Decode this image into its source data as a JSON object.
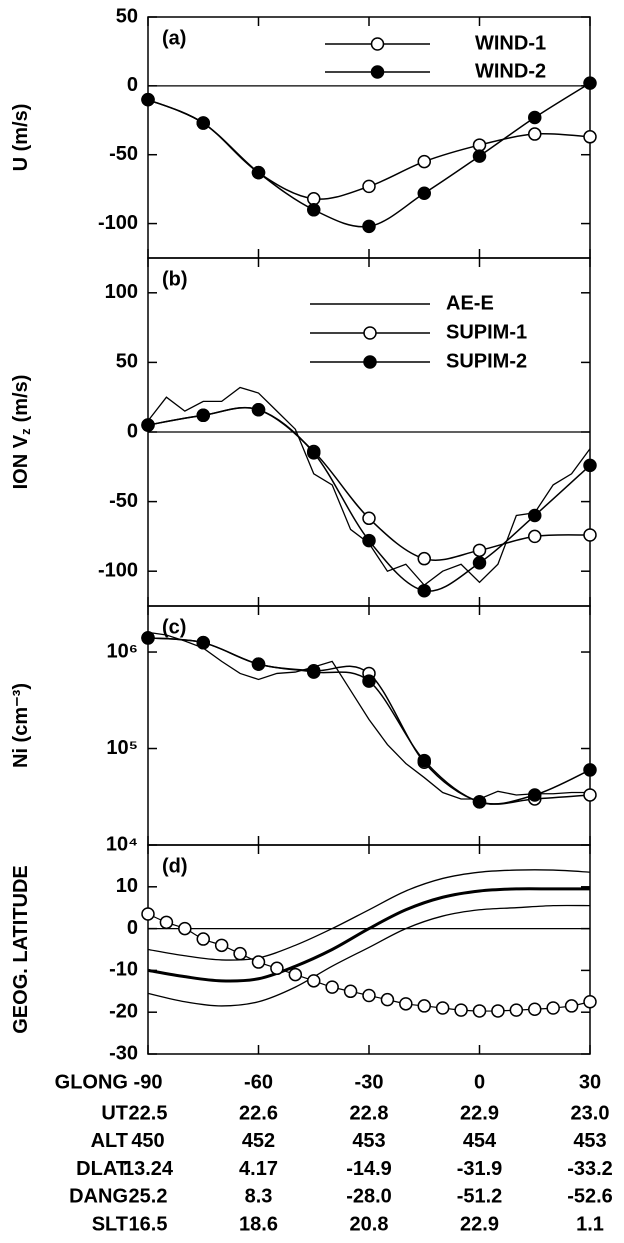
{
  "chart_data": [
    {
      "type": "line",
      "label": "(a)",
      "y_label": "U (m/s)",
      "xlim": [
        -90,
        30
      ],
      "xticks": [
        -90,
        -60,
        -30,
        0,
        30
      ],
      "ylim": [
        -125,
        50
      ],
      "yticks": [
        -100,
        -50,
        0,
        50
      ],
      "zero_line": true,
      "legend": true,
      "series": [
        {
          "name": "WIND-1",
          "color": "#000000",
          "marker": "open",
          "smooth": true,
          "width": 1.5,
          "x": [
            -90,
            -75,
            -60,
            -45,
            -30,
            -15,
            0,
            15,
            30
          ],
          "values": [
            -10,
            -27,
            -63,
            -82,
            -73,
            -55,
            -43,
            -35,
            -37
          ]
        },
        {
          "name": "WIND-2",
          "color": "#000000",
          "marker": "filled",
          "smooth": true,
          "width": 1.5,
          "x": [
            -90,
            -75,
            -60,
            -45,
            -30,
            -15,
            0,
            15,
            30
          ],
          "values": [
            -10,
            -27,
            -63,
            -90,
            -102,
            -78,
            -51,
            -23,
            2
          ]
        }
      ]
    },
    {
      "type": "line",
      "label": "(b)",
      "y_label": "ION V",
      "y_label_sub": "z",
      "y_label_unit": "(m/s)",
      "xlim": [
        -90,
        30
      ],
      "xticks": [
        -90,
        -60,
        -30,
        0,
        30
      ],
      "ylim": [
        -125,
        125
      ],
      "yticks": [
        -100,
        -50,
        0,
        50,
        100
      ],
      "zero_line": true,
      "legend": true,
      "series": [
        {
          "name": "AE-E",
          "color": "#000000",
          "marker": "none",
          "smooth": false,
          "width": 1.3,
          "x": [
            -90,
            -85,
            -80,
            -75,
            -70,
            -65,
            -60,
            -55,
            -50,
            -45,
            -40,
            -35,
            -30,
            -25,
            -20,
            -15,
            -10,
            -5,
            0,
            5,
            10,
            15,
            20,
            25,
            30
          ],
          "values": [
            8,
            25,
            15,
            22,
            22,
            32,
            28,
            15,
            2,
            -30,
            -38,
            -70,
            -80,
            -100,
            -95,
            -110,
            -100,
            -95,
            -108,
            -95,
            -60,
            -58,
            -38,
            -30,
            -12
          ]
        },
        {
          "name": "SUPIM-1",
          "color": "#000000",
          "marker": "open",
          "smooth": true,
          "width": 1.5,
          "x": [
            -90,
            -75,
            -60,
            -45,
            -30,
            -15,
            0,
            15,
            30
          ],
          "values": [
            5,
            12,
            16,
            -14,
            -62,
            -91,
            -85,
            -75,
            -74
          ]
        },
        {
          "name": "SUPIM-2",
          "color": "#000000",
          "marker": "filled",
          "smooth": true,
          "width": 1.5,
          "x": [
            -90,
            -75,
            -60,
            -45,
            -30,
            -15,
            0,
            15,
            30
          ],
          "values": [
            5,
            12,
            16,
            -15,
            -78,
            -114,
            -94,
            -60,
            -24
          ]
        }
      ]
    },
    {
      "type": "line",
      "label": "(c)",
      "y_label": "Ni (cm⁻³)",
      "log_scale": true,
      "xlim": [
        -90,
        30
      ],
      "xticks": [
        -90,
        -60,
        -30,
        0,
        30
      ],
      "ylim": [
        10000,
        3000000
      ],
      "yticks": [
        {
          "value": 10000,
          "label": "10⁴"
        },
        {
          "value": 100000,
          "label": "10⁵"
        },
        {
          "value": 1000000,
          "label": "10⁶"
        }
      ],
      "series": [
        {
          "color": "#000000",
          "marker": "none",
          "smooth": false,
          "width": 1.3,
          "x": [
            -90,
            -85,
            -80,
            -75,
            -70,
            -65,
            -60,
            -55,
            -50,
            -45,
            -40,
            -35,
            -30,
            -25,
            -20,
            -15,
            -10,
            -5,
            0,
            5,
            10,
            15,
            20,
            25,
            30
          ],
          "values": [
            1600000,
            1500000,
            1300000,
            1100000,
            800000,
            600000,
            520000,
            600000,
            620000,
            700000,
            800000,
            400000,
            200000,
            110000,
            70000,
            50000,
            35000,
            30000,
            30000,
            36000,
            33000,
            34000,
            34000,
            35000,
            35000
          ]
        },
        {
          "color": "#000000",
          "marker": "open",
          "smooth": true,
          "width": 1.5,
          "x": [
            -90,
            -75,
            -60,
            -45,
            -30,
            -15,
            0,
            15,
            30
          ],
          "values": [
            1400000,
            1250000,
            750000,
            640000,
            600000,
            72000,
            28000,
            30000,
            33000
          ]
        },
        {
          "color": "#000000",
          "marker": "filled",
          "smooth": true,
          "width": 1.5,
          "x": [
            -90,
            -75,
            -60,
            -45,
            -30,
            -15,
            0,
            15,
            30
          ],
          "values": [
            1400000,
            1250000,
            750000,
            620000,
            500000,
            75000,
            28000,
            33000,
            60000
          ]
        }
      ]
    },
    {
      "type": "line",
      "label": "(d)",
      "y_label": "GEOG. LATITUDE",
      "x_label": "GLONG",
      "show_xtick_labels": true,
      "xlim": [
        -90,
        30
      ],
      "xticks": [
        -90,
        -60,
        -30,
        0,
        30
      ],
      "ylim": [
        -30,
        20
      ],
      "yticks": [
        -30,
        -20,
        -10,
        0,
        10
      ],
      "zero_line": true,
      "series": [
        {
          "color": "#000000",
          "marker": "none",
          "smooth": true,
          "width": 3,
          "x": [
            -90,
            -80,
            -70,
            -60,
            -50,
            -40,
            -30,
            -20,
            -10,
            0,
            10,
            20,
            30
          ],
          "values": [
            -10,
            -11.5,
            -12.5,
            -12,
            -9,
            -5,
            0,
            4.5,
            7.5,
            9,
            9.5,
            9.5,
            9.5
          ]
        },
        {
          "color": "#000000",
          "marker": "none",
          "smooth": true,
          "width": 1.3,
          "x": [
            -90,
            -80,
            -70,
            -60,
            -50,
            -40,
            -30,
            -20,
            -10,
            0,
            10,
            20,
            30
          ],
          "values": [
            -5,
            -6.5,
            -7.5,
            -7,
            -4,
            0,
            4.5,
            9,
            12,
            13.5,
            14,
            14,
            13.5
          ]
        },
        {
          "color": "#000000",
          "marker": "none",
          "smooth": true,
          "width": 1.3,
          "x": [
            -90,
            -80,
            -70,
            -60,
            -50,
            -40,
            -30,
            -20,
            -10,
            0,
            10,
            20,
            30
          ],
          "values": [
            -15.5,
            -17.5,
            -18.5,
            -17.5,
            -14,
            -9,
            -4.5,
            0,
            3,
            4.5,
            5,
            5.5,
            5.5
          ]
        },
        {
          "color": "#000000",
          "marker": "open",
          "smooth": true,
          "width": 1.2,
          "x": [
            -90,
            -85,
            -80,
            -75,
            -70,
            -65,
            -60,
            -55,
            -50,
            -45,
            -40,
            -35,
            -30,
            -25,
            -20,
            -15,
            -10,
            -5,
            0,
            5,
            10,
            15,
            20,
            25,
            30
          ],
          "values": [
            3.5,
            1.5,
            0,
            -2.5,
            -4,
            -6,
            -8,
            -9.5,
            -11,
            -12.5,
            -14,
            -15,
            -16,
            -17,
            -18,
            -18.5,
            -19,
            -19.5,
            -19.7,
            -19.7,
            -19.5,
            -19.3,
            -19,
            -18.5,
            -17.5
          ]
        }
      ]
    }
  ],
  "table": {
    "rows": [
      [
        "UT",
        "22.5",
        "22.6",
        "22.8",
        "22.9",
        "23.0"
      ],
      [
        "ALT",
        "450",
        "452",
        "453",
        "454",
        "453"
      ],
      [
        "DLAT",
        "13.24",
        "4.17",
        "-14.9",
        "-31.9",
        "-33.2"
      ],
      [
        "DANG",
        "25.2",
        "8.3",
        "-28.0",
        "-51.2",
        "-52.6"
      ],
      [
        "SLT",
        "16.5",
        "18.6",
        "20.8",
        "22.9",
        "1.1"
      ]
    ]
  }
}
